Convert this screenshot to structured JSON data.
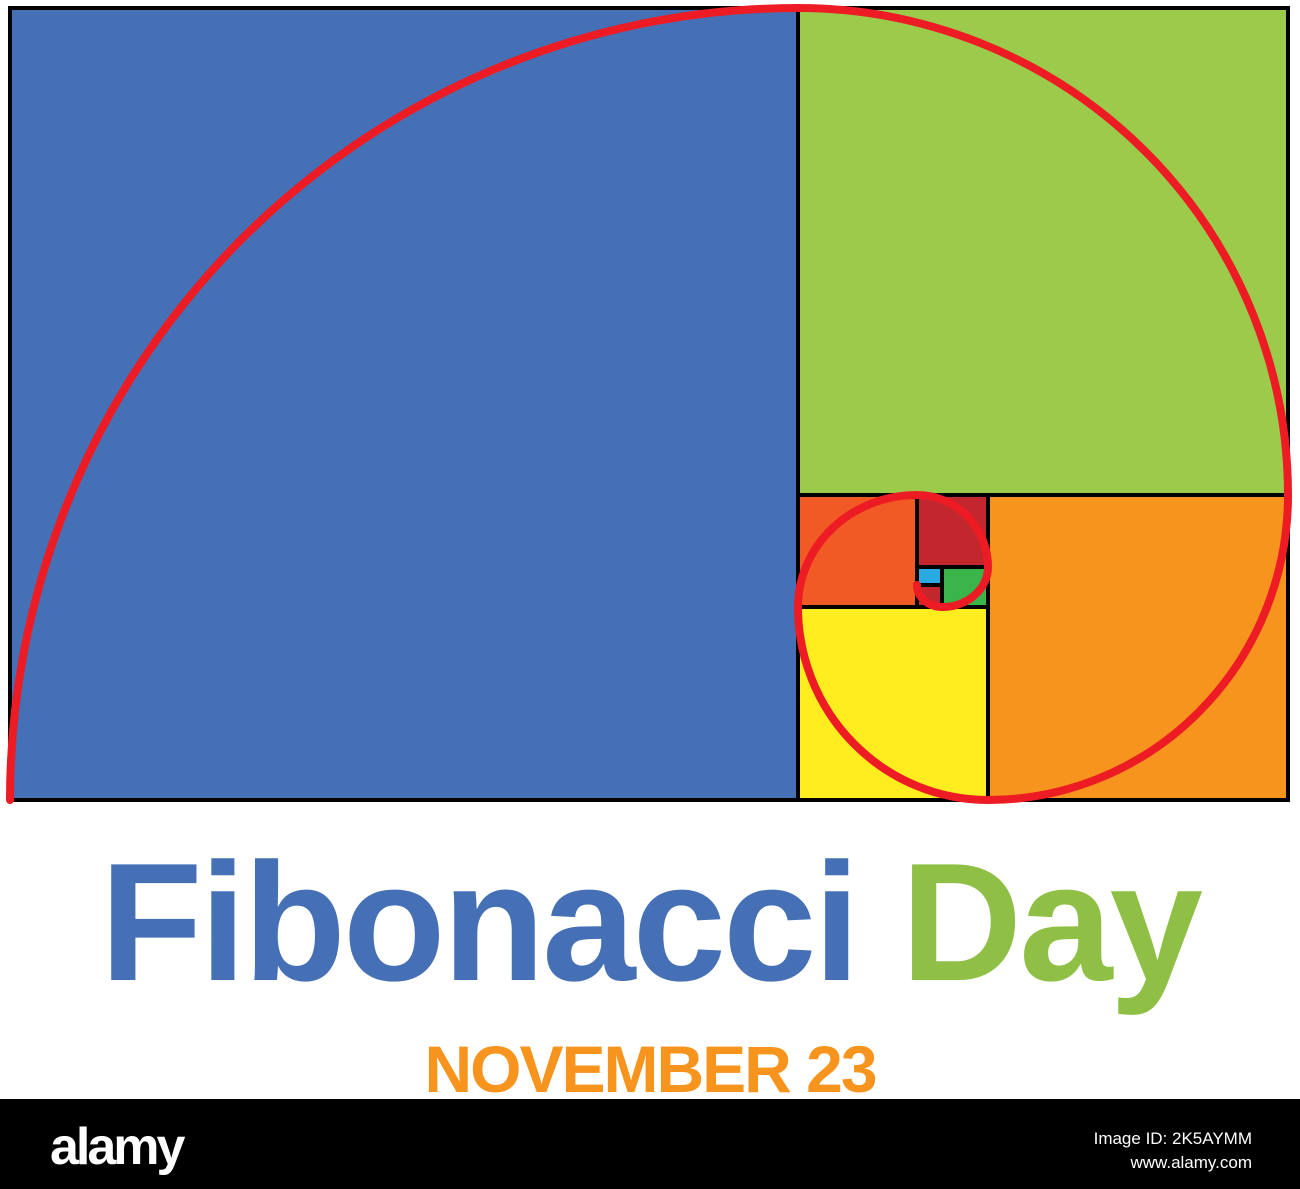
{
  "colors": {
    "blue": "#4570b6",
    "green": "#9ccb4c",
    "orange": "#f7941d",
    "red_orange": "#f15a24",
    "yellow": "#ffed1f",
    "dark_red": "#c1272d",
    "small_green": "#39b54a",
    "small_blue": "#29abe2",
    "spiral": "#ed1c24"
  },
  "title": {
    "word1": "Fibonacci",
    "word2": "Day"
  },
  "date": "NOVEMBER 23",
  "watermark": {
    "logo": "alamy",
    "image_id": "Image ID: 2K5AYMM",
    "url": "www.alamy.com"
  }
}
